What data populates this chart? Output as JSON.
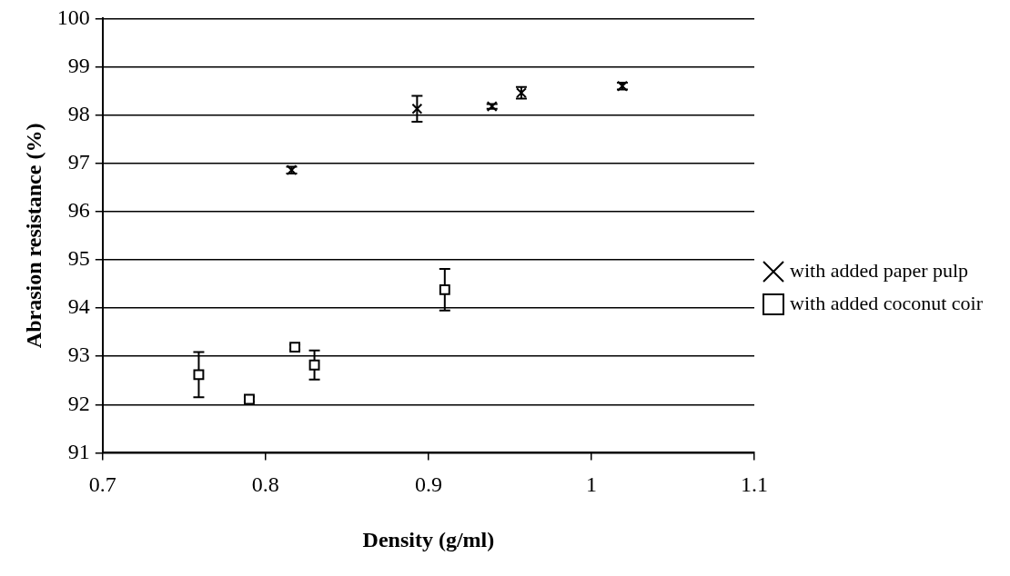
{
  "chart_data": {
    "type": "scatter",
    "xlabel": "Density (g/ml)",
    "ylabel": "Abrasion resistance (%)",
    "xlim": [
      0.7,
      1.1
    ],
    "xticks": [
      0.7,
      0.8,
      0.9,
      1,
      1.1
    ],
    "ylim": [
      91,
      100
    ],
    "yticks": [
      91,
      92,
      93,
      94,
      95,
      96,
      97,
      98,
      99,
      100
    ],
    "grid": "y",
    "legend": "right",
    "series": [
      {
        "name": "with added paper pulp",
        "color": "#000000",
        "marker": "cross",
        "x": [
          0.816,
          0.893,
          0.939,
          0.957,
          1.019
        ],
        "values": [
          96.86,
          98.13,
          98.18,
          98.46,
          98.6
        ],
        "errors": [
          0.07,
          0.27,
          0.05,
          0.12,
          0.07
        ]
      },
      {
        "name": "with added coconut coir",
        "color": "#000000",
        "marker": "square",
        "x": [
          0.759,
          0.79,
          0.818,
          0.83,
          0.91
        ],
        "values": [
          92.62,
          92.11,
          93.19,
          92.82,
          94.38
        ],
        "errors": [
          0.47,
          0.05,
          0.05,
          0.3,
          0.43
        ]
      }
    ]
  }
}
